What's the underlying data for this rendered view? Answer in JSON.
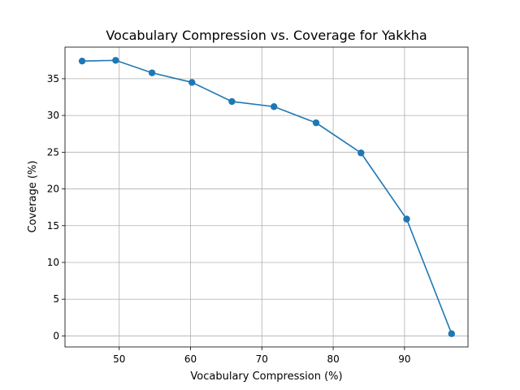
{
  "chart_data": {
    "type": "line",
    "title": "Vocabulary Compression vs. Coverage for Yakkha",
    "xlabel": "Vocabulary Compression (%)",
    "ylabel": "Coverage (%)",
    "xlim": [
      42.4,
      98.9
    ],
    "ylim": [
      -1.5,
      39.3
    ],
    "xticks": [
      50,
      60,
      70,
      80,
      90
    ],
    "yticks": [
      0,
      5,
      10,
      15,
      20,
      25,
      30,
      35
    ],
    "grid": true,
    "series": [
      {
        "color": "#1f77b4",
        "marker": "circle",
        "x": [
          44.8,
          49.5,
          54.6,
          60.2,
          65.8,
          71.7,
          77.6,
          83.9,
          90.3,
          96.6
        ],
        "y": [
          37.4,
          37.5,
          35.8,
          34.5,
          31.9,
          31.2,
          29.0,
          24.9,
          15.9,
          0.3
        ]
      }
    ]
  }
}
